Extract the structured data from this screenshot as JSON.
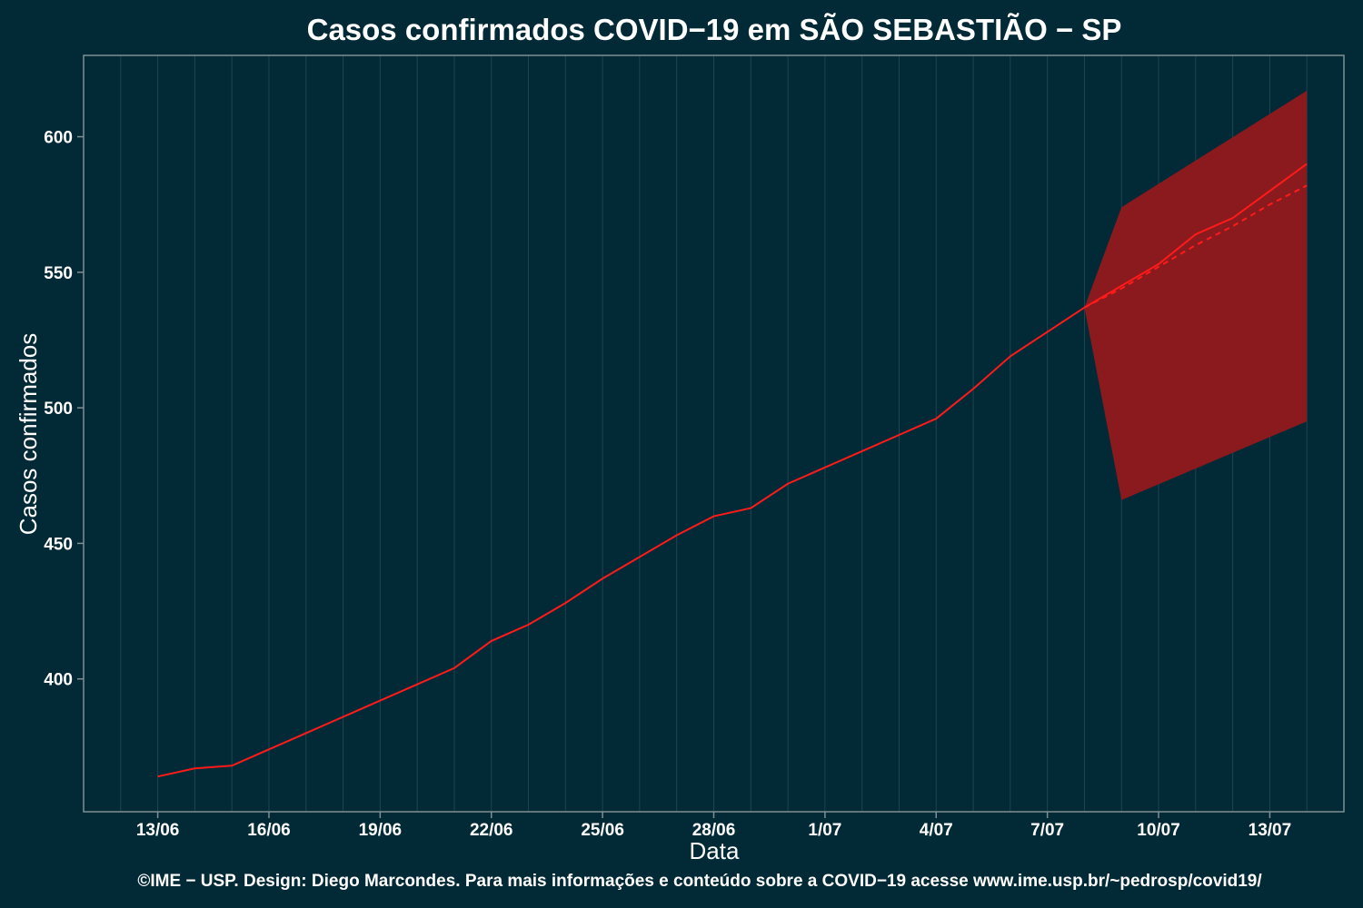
{
  "chart_data": {
    "type": "line",
    "title": "Casos confirmados COVID−19 em SÃO SEBASTIÃO − SP",
    "xlabel": "Data",
    "ylabel": "Casos confirmados",
    "caption": "©IME − USP. Design: Diego Marcondes. Para mais informações e conteúdo sobre a COVID−19 acesse www.ime.usp.br/~pedrosp/covid19/",
    "x_tick_labels": [
      "13/06",
      "16/06",
      "19/06",
      "22/06",
      "25/06",
      "28/06",
      "1/07",
      "4/07",
      "7/07",
      "10/07",
      "13/07"
    ],
    "y_ticks": [
      400,
      450,
      500,
      550,
      600
    ],
    "xlim": [
      "2020-06-11",
      "2020-07-15"
    ],
    "ylim": [
      351,
      630
    ],
    "grid": true,
    "colors": {
      "background": "#012a36",
      "observed_line": "#ff1a1a",
      "forecast_band": "#8b1a1e",
      "grid": "#1e4551"
    },
    "series": [
      {
        "style": "solid",
        "x": [
          "2020-06-13",
          "2020-06-14",
          "2020-06-15",
          "2020-06-16",
          "2020-06-17",
          "2020-06-18",
          "2020-06-19",
          "2020-06-20",
          "2020-06-21",
          "2020-06-22",
          "2020-06-23",
          "2020-06-24",
          "2020-06-25",
          "2020-06-26",
          "2020-06-27",
          "2020-06-28",
          "2020-06-29",
          "2020-06-30",
          "2020-07-01",
          "2020-07-02",
          "2020-07-03",
          "2020-07-04",
          "2020-07-05",
          "2020-07-06",
          "2020-07-07",
          "2020-07-08",
          "2020-07-09",
          "2020-07-10",
          "2020-07-11",
          "2020-07-12",
          "2020-07-13",
          "2020-07-14"
        ],
        "values": [
          364,
          367,
          368,
          374,
          380,
          386,
          392,
          398,
          404,
          414,
          420,
          428,
          437,
          445,
          453,
          460,
          463,
          472,
          478,
          484,
          490,
          496,
          507,
          519,
          528,
          537,
          545,
          553,
          564,
          570,
          580,
          590
        ]
      },
      {
        "style": "dashed",
        "x": [
          "2020-07-08",
          "2020-07-09",
          "2020-07-10",
          "2020-07-11",
          "2020-07-12",
          "2020-07-13",
          "2020-07-14"
        ],
        "values": [
          537,
          544,
          552,
          560,
          567,
          575,
          582
        ]
      }
    ],
    "forecast_band": {
      "x": [
        "2020-07-08",
        "2020-07-09",
        "2020-07-14"
      ],
      "lower": [
        537,
        466,
        495
      ],
      "upper": [
        537,
        574,
        617
      ]
    }
  }
}
